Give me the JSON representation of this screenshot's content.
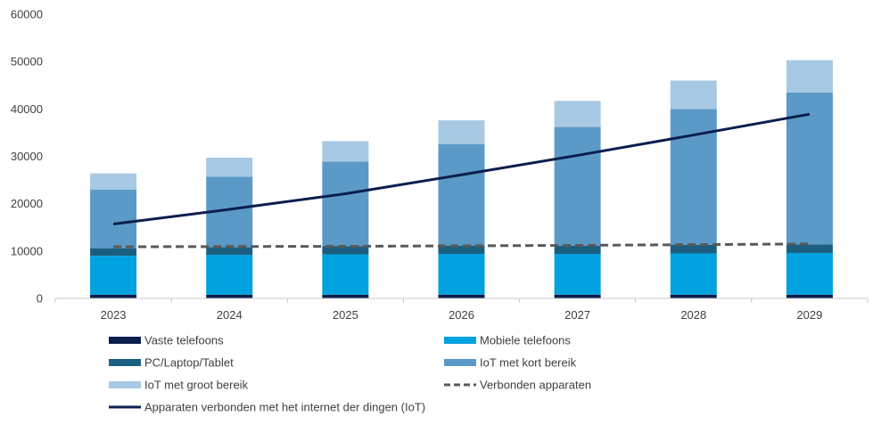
{
  "chart_data": {
    "type": "bar",
    "stacked": true,
    "categories": [
      "2023",
      "2024",
      "2025",
      "2026",
      "2027",
      "2028",
      "2029"
    ],
    "ylim": [
      0,
      60000
    ],
    "yticks": [
      "0",
      "10000",
      "20000",
      "30000",
      "40000",
      "50000",
      "60000"
    ],
    "grid": false,
    "series": [
      {
        "name": "Vaste telefoons",
        "kind": "bar",
        "color": "#0c1e4e",
        "values": [
          800,
          800,
          800,
          800,
          800,
          800,
          800
        ]
      },
      {
        "name": "Mobiele telefoons",
        "kind": "bar",
        "color": "#00a2df",
        "values": [
          8200,
          8400,
          8500,
          8600,
          8600,
          8700,
          8800
        ]
      },
      {
        "name": "PC/Laptop/Tablet",
        "kind": "bar",
        "color": "#1b5f80",
        "values": [
          1600,
          1600,
          1700,
          1700,
          1700,
          1800,
          1800
        ]
      },
      {
        "name": "IoT met kort bereik",
        "kind": "bar",
        "color": "#5b9ac7",
        "values": [
          12400,
          14900,
          17900,
          21500,
          25100,
          28700,
          32100
        ]
      },
      {
        "name": "IoT met groot bereik",
        "kind": "bar",
        "color": "#a7c9e3",
        "values": [
          3400,
          4000,
          4300,
          5000,
          5500,
          6000,
          6800
        ]
      },
      {
        "name": "Verbonden apparaten",
        "kind": "line",
        "style": "dashed",
        "color": "#595959",
        "values": [
          10900,
          10950,
          11000,
          11100,
          11200,
          11350,
          11500
        ]
      },
      {
        "name": "Apparaten verbonden met het internet der dingen (IoT)",
        "kind": "line",
        "style": "solid",
        "color": "#0c1e4e",
        "values": [
          15700,
          18800,
          22100,
          26100,
          30200,
          34500,
          38900
        ]
      }
    ],
    "legend_position": "bottom"
  }
}
